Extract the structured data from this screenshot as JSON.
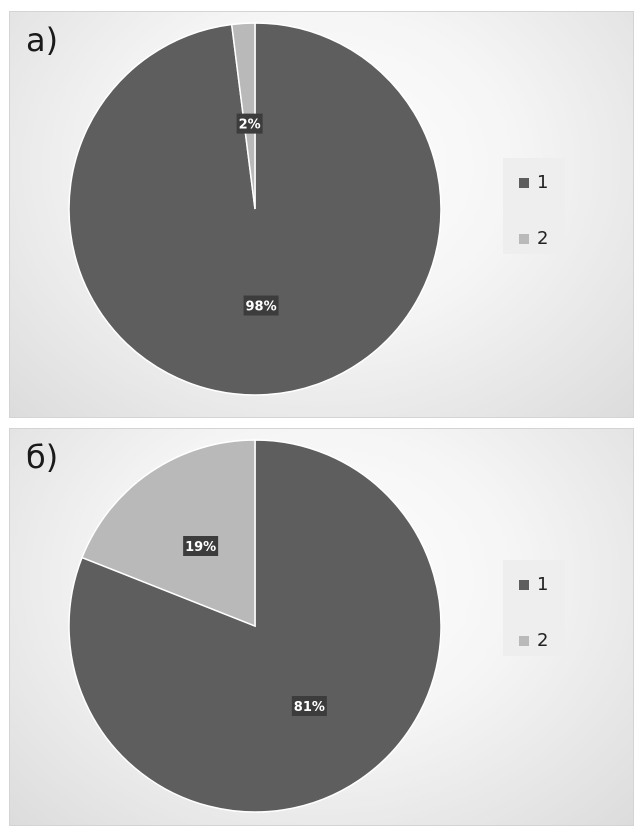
{
  "colors": {
    "series_1": "#5e5e5e",
    "series_2": "#b9b9b9",
    "label_box": "#3c3c3c",
    "label_text": "#ffffff"
  },
  "chart_data": [
    {
      "type": "pie",
      "panel_label": "а)",
      "categories": [
        "1",
        "2"
      ],
      "values": [
        98,
        2
      ],
      "data_labels": [
        "98%",
        "2%"
      ],
      "legend": [
        "1",
        "2"
      ],
      "legend_position": "right"
    },
    {
      "type": "pie",
      "panel_label": "б)",
      "categories": [
        "1",
        "2"
      ],
      "values": [
        81,
        19
      ],
      "data_labels": [
        "81%",
        "19%"
      ],
      "legend": [
        "1",
        "2"
      ],
      "legend_position": "right"
    }
  ]
}
